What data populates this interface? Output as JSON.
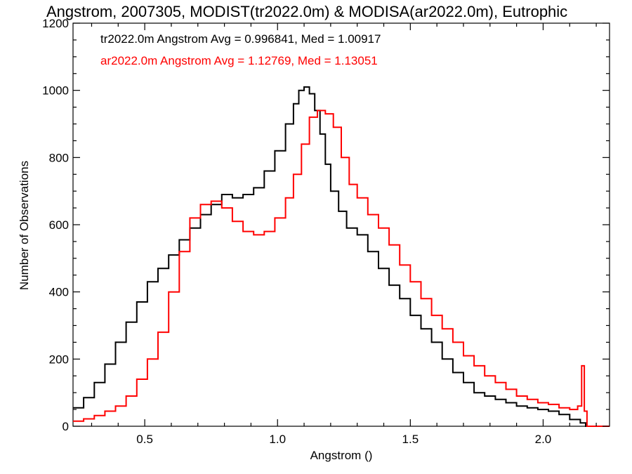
{
  "chart_data": {
    "type": "line",
    "title": "Angstrom, 2007305, MODIST(tr2022.0m) & MODISA(ar2022.0m), Eutrophic",
    "xlabel": "Angstrom ()",
    "ylabel": "Number of Observations",
    "xlim": [
      0.23,
      2.25
    ],
    "ylim": [
      0,
      1200
    ],
    "x_ticks": [
      0.5,
      1.0,
      1.5,
      2.0
    ],
    "x_tick_labels": [
      "0.5",
      "1.0",
      "1.5",
      "2.0"
    ],
    "y_ticks": [
      0,
      200,
      400,
      600,
      800,
      1000,
      1200
    ],
    "y_tick_labels": [
      "0",
      "200",
      "400",
      "600",
      "800",
      "1000",
      "1200"
    ],
    "grid": false,
    "legend_placement": "top-left",
    "series": [
      {
        "name": "tr2022.0m",
        "legend_text": "tr2022.0m Angstrom Avg = 0.996841, Med = 1.00917",
        "color": "#000000",
        "x": [
          0.23,
          0.27,
          0.31,
          0.35,
          0.39,
          0.43,
          0.47,
          0.51,
          0.55,
          0.59,
          0.63,
          0.67,
          0.71,
          0.75,
          0.79,
          0.83,
          0.87,
          0.91,
          0.95,
          0.99,
          1.03,
          1.06,
          1.08,
          1.1,
          1.12,
          1.14,
          1.16,
          1.18,
          1.2,
          1.23,
          1.26,
          1.3,
          1.34,
          1.38,
          1.42,
          1.46,
          1.5,
          1.54,
          1.58,
          1.62,
          1.66,
          1.7,
          1.74,
          1.78,
          1.82,
          1.86,
          1.9,
          1.94,
          1.98,
          2.02,
          2.06,
          2.1,
          2.14,
          2.16,
          2.2,
          2.25
        ],
        "y": [
          55,
          85,
          130,
          185,
          250,
          310,
          370,
          430,
          470,
          510,
          555,
          590,
          630,
          660,
          690,
          680,
          690,
          710,
          760,
          820,
          900,
          960,
          1000,
          1010,
          990,
          940,
          870,
          780,
          700,
          640,
          590,
          570,
          520,
          470,
          420,
          380,
          330,
          290,
          250,
          200,
          160,
          130,
          100,
          90,
          80,
          70,
          60,
          55,
          50,
          45,
          35,
          20,
          10,
          0,
          0,
          0
        ]
      },
      {
        "name": "ar2022.0m",
        "legend_text": "ar2022.0m Angstrom Avg = 1.12769, Med = 1.13051",
        "color": "#ff0000",
        "x": [
          0.23,
          0.27,
          0.31,
          0.35,
          0.39,
          0.43,
          0.47,
          0.51,
          0.55,
          0.59,
          0.63,
          0.67,
          0.71,
          0.75,
          0.79,
          0.83,
          0.87,
          0.91,
          0.95,
          0.99,
          1.03,
          1.06,
          1.09,
          1.12,
          1.15,
          1.18,
          1.21,
          1.24,
          1.27,
          1.3,
          1.34,
          1.38,
          1.42,
          1.46,
          1.5,
          1.54,
          1.58,
          1.62,
          1.66,
          1.7,
          1.74,
          1.78,
          1.82,
          1.86,
          1.9,
          1.94,
          1.98,
          2.02,
          2.06,
          2.1,
          2.13,
          2.145,
          2.155,
          2.165,
          2.2,
          2.25
        ],
        "y": [
          15,
          22,
          32,
          45,
          60,
          90,
          140,
          200,
          280,
          400,
          520,
          620,
          660,
          670,
          650,
          610,
          580,
          570,
          580,
          620,
          680,
          750,
          840,
          920,
          940,
          930,
          890,
          800,
          720,
          680,
          630,
          590,
          540,
          480,
          430,
          380,
          330,
          290,
          250,
          210,
          180,
          150,
          130,
          110,
          90,
          80,
          70,
          65,
          55,
          50,
          60,
          180,
          45,
          0,
          0,
          0
        ]
      }
    ]
  }
}
